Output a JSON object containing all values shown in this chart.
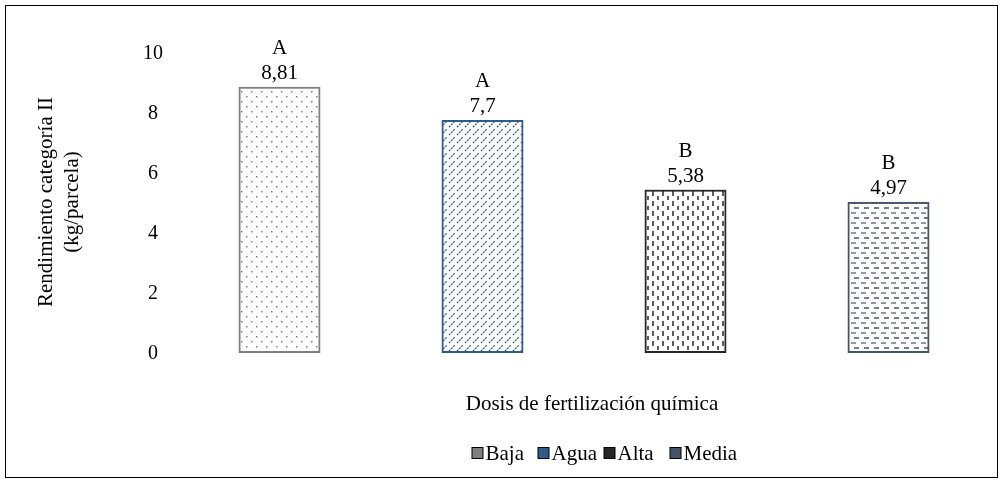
{
  "chart_data": {
    "type": "bar",
    "xlabel": "Dosis de fertilización química",
    "ylabel": "Rendimiento categoría II\n(kg/parcela)",
    "categories": [
      null,
      null,
      null,
      null
    ],
    "series": [
      {
        "name": "Baja",
        "color": "#7f7f7f",
        "values": [
          8.81,
          null,
          null,
          null
        ],
        "value_labels": [
          "8,81",
          null,
          null,
          null
        ]
      },
      {
        "name": "Agua",
        "color": "#2e5b8c",
        "values": [
          null,
          7.7,
          null,
          null
        ],
        "value_labels": [
          null,
          "7,7",
          null,
          null
        ]
      },
      {
        "name": "Alta",
        "color": "#262626",
        "values": [
          null,
          null,
          5.38,
          null
        ],
        "value_labels": [
          null,
          null,
          "5,38",
          null
        ]
      },
      {
        "name": "Media",
        "color": "#44546a",
        "values": [
          null,
          null,
          null,
          4.97
        ],
        "value_labels": [
          null,
          null,
          null,
          "4,97"
        ]
      }
    ],
    "annotations": [
      {
        "text": "A",
        "y": 8.81
      },
      {
        "text": "A",
        "y": 7.7
      },
      {
        "text": "B",
        "y": 5.38
      },
      {
        "text": "B",
        "y": 4.97
      }
    ],
    "ylim": [
      0,
      10
    ],
    "yticks": [
      0,
      2,
      4,
      6,
      8,
      10
    ],
    "grid": false,
    "legend": "bottom",
    "stacked": true
  }
}
